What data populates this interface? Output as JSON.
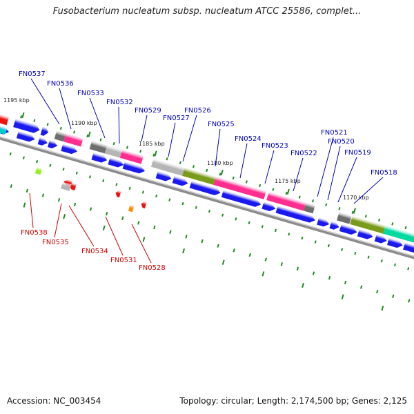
{
  "title": "Fusobacterium nucleatum subsp. nucleatum ATCC 25586, complet...",
  "footer": {
    "accession": "Accession: NC_003454",
    "summary": "Topology: circular; Length: 2,174,500 bp; Genes: 2,125"
  },
  "colors": {
    "plus_label": "#0000bb",
    "minus_label": "#cc0000",
    "backbone": "#8c8c8c",
    "blue_gene": "#1a1aee",
    "magenta": "#ff2d8f",
    "olive": "#7a9a1a",
    "gray": "#b5b5b5",
    "dark_gray": "#6e6e6e",
    "teal": "#00d9a0",
    "tick": "#1f8a1f"
  },
  "kbp_labels": [
    "1195 kbp",
    "1190 kbp",
    "1185 kbp",
    "1180 kbp",
    "1175 kbp",
    "1170 kbp"
  ],
  "plus_genes": [
    "FN0537",
    "FN0536",
    "FN0533",
    "FN0532",
    "FN0529",
    "FN0527",
    "FN0526",
    "FN0525",
    "FN0524",
    "FN0523",
    "FN0522",
    "FN0521",
    "FN0520",
    "FN0519",
    "FN0518"
  ],
  "minus_genes": [
    "FN0538",
    "FN0535",
    "FN0534",
    "FN0531",
    "FN0528"
  ]
}
